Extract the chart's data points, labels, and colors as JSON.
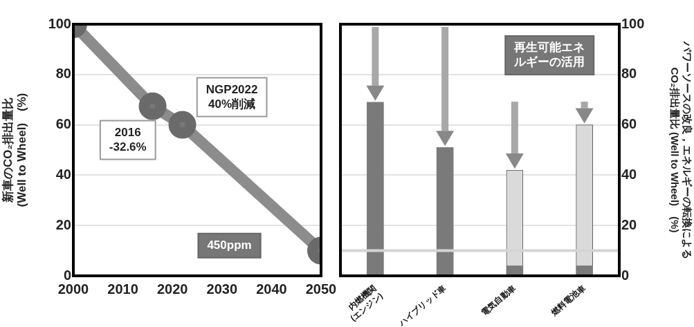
{
  "chart_data": [
    {
      "type": "line",
      "ylabel": "新車のCO₂排出量比\n(Well to Wheel)　(%)",
      "x": [
        2000,
        2016,
        2022,
        2050
      ],
      "series": [
        {
          "color": "#8c8c8c",
          "values": [
            100,
            67.4,
            60,
            10
          ]
        }
      ],
      "xlim": [
        2000,
        2050
      ],
      "xticks": [
        2000,
        2010,
        2020,
        2030,
        2040,
        2050
      ],
      "ylim": [
        0,
        100
      ],
      "yticks": [
        0,
        20,
        40,
        60,
        80,
        100
      ],
      "grid": "y",
      "marker": "circle",
      "legend": false,
      "annotations": [
        "2016\n-32.6%",
        "NGP2022\n40%削減",
        "450ppm"
      ]
    },
    {
      "type": "bar",
      "stacked": true,
      "categories": [
        "内燃機関\n(エンジン)",
        "ハイブリッド車",
        "電気自動車",
        "燃料電池車"
      ],
      "series": [
        {
          "color": "#7a7a7a",
          "values": [
            69,
            51,
            4,
            4
          ],
          "axis": "y2"
        },
        {
          "color": "#dadada",
          "values": [
            null,
            null,
            38,
            56
          ],
          "axis": "y2"
        }
      ],
      "y2label": "パワーソースの改良，エネルギーの転換による\nCO₂排出量比 (Well to Wheel)　(%)",
      "y2lim": [
        0,
        100
      ],
      "y2ticks": [
        0,
        20,
        40,
        60,
        80,
        100
      ],
      "grid": "y",
      "legend": false,
      "ref_lines": [
        {
          "axis": "y2",
          "value": 10,
          "color": "#d4d4d4"
        }
      ],
      "annotations": [
        "再生可能エネルギーの活用"
      ]
    }
  ]
}
